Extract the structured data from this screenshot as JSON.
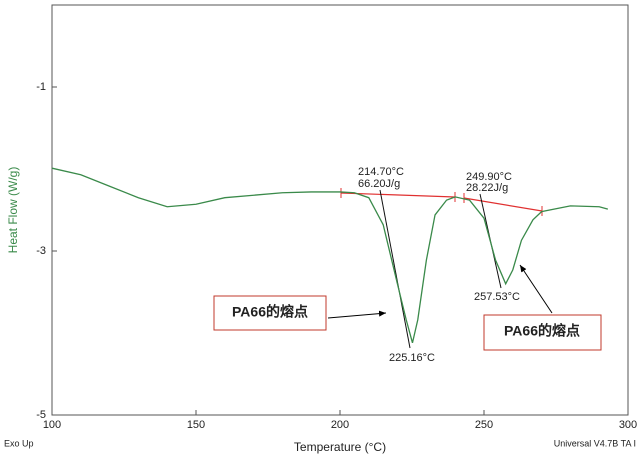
{
  "chart_data": {
    "type": "line",
    "x_label": "Temperature (°C)",
    "y_label": "Heat Flow (W/g)",
    "corner_left": "Exo Up",
    "corner_right": "Universal V4.7B TA I",
    "xlim": [
      100,
      300
    ],
    "ylim": [
      -5,
      0
    ],
    "xticks": [
      100,
      150,
      200,
      250,
      300
    ],
    "yticks": [
      -1,
      -3,
      -5
    ],
    "x": [
      100,
      110,
      120,
      130,
      140,
      150,
      160,
      170,
      180,
      190,
      200,
      205,
      210,
      215,
      220,
      223,
      225.16,
      227,
      230,
      233,
      237,
      240,
      245,
      250,
      254,
      257.53,
      260,
      263,
      267,
      270,
      280,
      290,
      293
    ],
    "series": [
      {
        "color": "#3a8a4a",
        "values": [
          -1.99,
          -2.07,
          -2.21,
          -2.35,
          -2.46,
          -2.43,
          -2.35,
          -2.32,
          -2.29,
          -2.28,
          -2.28,
          -2.29,
          -2.35,
          -2.68,
          -3.41,
          -3.84,
          -4.12,
          -3.84,
          -3.11,
          -2.56,
          -2.38,
          -2.34,
          -2.38,
          -2.6,
          -3.11,
          -3.4,
          -3.23,
          -2.87,
          -2.62,
          -2.52,
          -2.45,
          -2.46,
          -2.49
        ]
      }
    ],
    "annotations": [
      "214.70°C",
      "66.20J/g",
      "249.90°C",
      "28.22J/g",
      "225.16°C",
      "257.53°C",
      "PA66的熔点",
      "PA66的熔点"
    ]
  }
}
